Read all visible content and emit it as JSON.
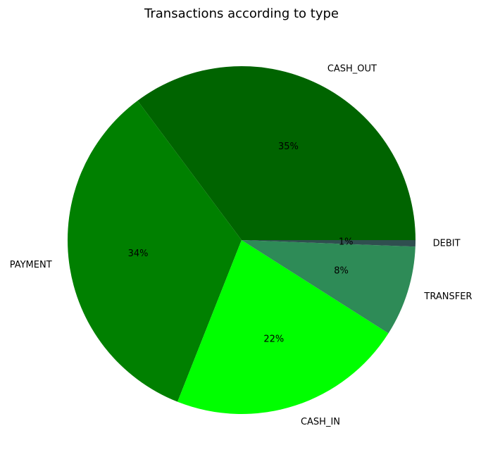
{
  "chart_data": {
    "type": "pie",
    "title": "Transactions according to type",
    "start_angle_deg": 0,
    "direction": "counterclockwise",
    "slices": [
      {
        "label": "CASH_OUT",
        "value": 35.2,
        "percent_label": "35%",
        "color": "#006400"
      },
      {
        "label": "PAYMENT",
        "value": 33.8,
        "percent_label": "34%",
        "color": "#008000"
      },
      {
        "label": "CASH_IN",
        "value": 22.0,
        "percent_label": "22%",
        "color": "#00ff00"
      },
      {
        "label": "TRANSFER",
        "value": 8.4,
        "percent_label": "8%",
        "color": "#2e8b57"
      },
      {
        "label": "DEBIT",
        "value": 0.6,
        "percent_label": "1%",
        "color": "#2f4f4f"
      }
    ]
  }
}
